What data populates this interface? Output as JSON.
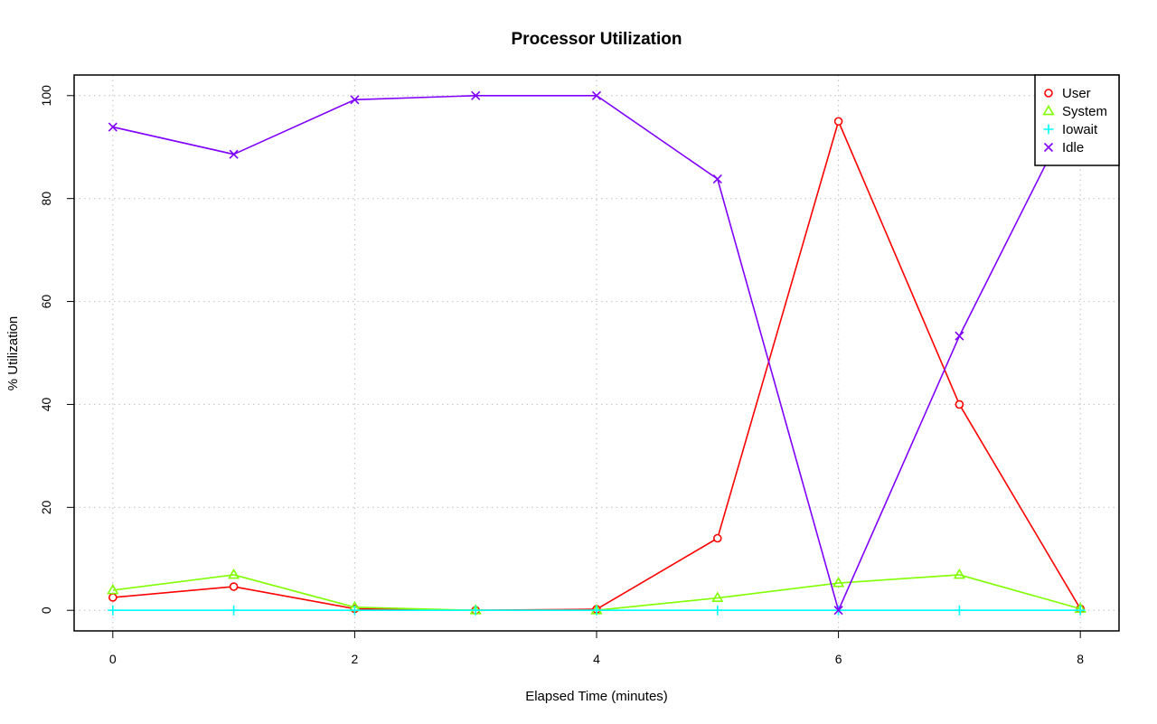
{
  "chart_data": {
    "type": "line",
    "title": "Processor Utilization",
    "xlabel": "Elapsed Time (minutes)",
    "ylabel": "% Utilization",
    "xlim": [
      -0.32,
      8.32
    ],
    "ylim": [
      -4,
      104
    ],
    "x_ticks": [
      0,
      2,
      4,
      6,
      8
    ],
    "y_ticks": [
      0,
      20,
      40,
      60,
      80,
      100
    ],
    "grid": true,
    "legend_position": "top-right",
    "x": [
      0,
      1,
      2,
      3,
      4,
      5,
      6,
      7,
      8
    ],
    "series": [
      {
        "name": "User",
        "color": "#ff0000",
        "marker": "circle",
        "values": [
          2.5,
          4.6,
          0.3,
          0.0,
          0.2,
          14.0,
          95.0,
          40.0,
          0.3
        ]
      },
      {
        "name": "System",
        "color": "#80ff00",
        "marker": "triangle",
        "values": [
          3.9,
          6.9,
          0.6,
          0.0,
          0.0,
          2.4,
          5.3,
          6.9,
          0.3
        ]
      },
      {
        "name": "Iowait",
        "color": "#00ffff",
        "marker": "plus",
        "values": [
          0,
          0,
          0,
          0,
          0,
          0,
          0,
          0,
          0
        ]
      },
      {
        "name": "Idle",
        "color": "#8000ff",
        "marker": "cross",
        "values": [
          93.9,
          88.6,
          99.2,
          100.0,
          100.0,
          83.8,
          0.0,
          53.3,
          100.0
        ]
      }
    ]
  }
}
